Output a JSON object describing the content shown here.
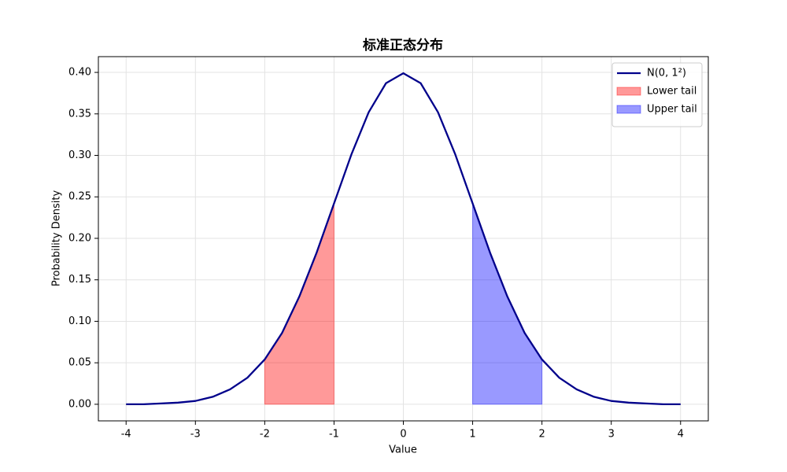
{
  "chart_data": {
    "type": "line",
    "title": "标准正态分布",
    "x_label": "Value",
    "y_label": "Probability Density",
    "x": [
      -4,
      -3.75,
      -3.5,
      -3.25,
      -3,
      -2.75,
      -2.5,
      -2.25,
      -2,
      -1.75,
      -1.5,
      -1.25,
      -1,
      -0.75,
      -0.5,
      -0.25,
      0,
      0.25,
      0.5,
      0.75,
      1,
      1.25,
      1.5,
      1.75,
      2,
      2.25,
      2.5,
      2.75,
      3,
      3.25,
      3.5,
      3.75,
      4
    ],
    "series": [
      {
        "name": "N(0, 1²)",
        "type": "line",
        "color": "#00008b",
        "values": [
          0.0,
          0.0,
          0.001,
          0.002,
          0.004,
          0.009,
          0.018,
          0.032,
          0.054,
          0.086,
          0.13,
          0.183,
          0.242,
          0.301,
          0.352,
          0.387,
          0.399,
          0.387,
          0.352,
          0.301,
          0.242,
          0.183,
          0.13,
          0.086,
          0.054,
          0.032,
          0.018,
          0.009,
          0.004,
          0.002,
          0.001,
          0.0,
          0.0
        ]
      },
      {
        "name": "Lower tail",
        "type": "area",
        "color": "#ff0000",
        "alpha": 0.4,
        "x": [
          -2,
          -1.75,
          -1.5,
          -1.25,
          -1
        ],
        "values": [
          0.054,
          0.086,
          0.13,
          0.183,
          0.242
        ]
      },
      {
        "name": "Upper tail",
        "type": "area",
        "color": "#0000ff",
        "alpha": 0.4,
        "x": [
          1,
          1.25,
          1.5,
          1.75,
          2
        ],
        "values": [
          0.242,
          0.183,
          0.13,
          0.086,
          0.054
        ]
      }
    ],
    "xlim": [
      -4.4,
      4.4
    ],
    "ylim": [
      -0.02,
      0.419
    ],
    "xticks": [
      -4,
      -3,
      -2,
      -1,
      0,
      1,
      2,
      3,
      4
    ],
    "yticks": [
      {
        "value": 0,
        "label": "0.00"
      },
      {
        "value": 0.05,
        "label": "0.05"
      },
      {
        "value": 0.1,
        "label": "0.10"
      },
      {
        "value": 0.15,
        "label": "0.15"
      },
      {
        "value": 0.2,
        "label": "0.20"
      },
      {
        "value": 0.25,
        "label": "0.25"
      },
      {
        "value": 0.3,
        "label": "0.30"
      },
      {
        "value": 0.35,
        "label": "0.35"
      },
      {
        "value": 0.4,
        "label": "0.40"
      }
    ],
    "grid": true,
    "legend": "upper right"
  }
}
